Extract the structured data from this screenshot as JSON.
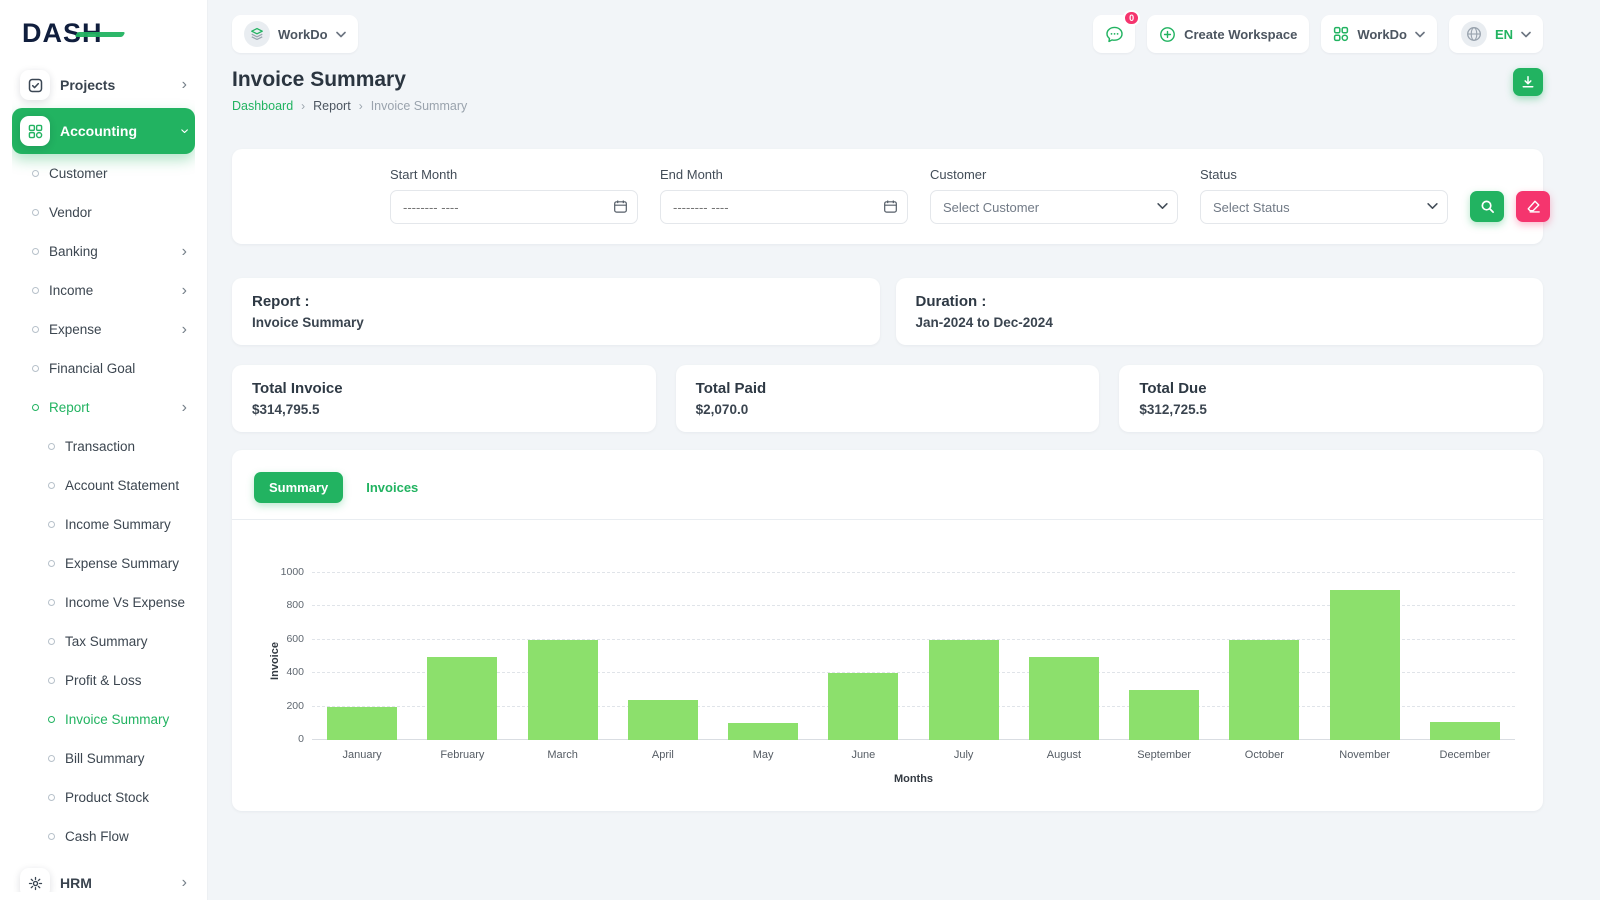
{
  "app": {
    "logo_text": "DASH"
  },
  "header": {
    "workspace_chip_label": "WorkDo",
    "messages_badge": "0",
    "create_workspace_label": "Create Workspace",
    "workspace_menu_label": "WorkDo",
    "language_label": "EN"
  },
  "sidebar": {
    "items": [
      {
        "label": "Projects",
        "level": 0,
        "icon": "projects-icon",
        "chevron": "right"
      },
      {
        "label": "Accounting",
        "level": 0,
        "icon": "accounting-icon",
        "chevron": "down",
        "active": true
      },
      {
        "label": "Customer",
        "level": 1
      },
      {
        "label": "Vendor",
        "level": 1
      },
      {
        "label": "Banking",
        "level": 1,
        "chevron": "right"
      },
      {
        "label": "Income",
        "level": 1,
        "chevron": "right"
      },
      {
        "label": "Expense",
        "level": 1,
        "chevron": "right"
      },
      {
        "label": "Financial Goal",
        "level": 1
      },
      {
        "label": "Report",
        "level": 1,
        "chevron": "right",
        "active": true
      },
      {
        "label": "Transaction",
        "level": 2
      },
      {
        "label": "Account Statement",
        "level": 2
      },
      {
        "label": "Income Summary",
        "level": 2
      },
      {
        "label": "Expense Summary",
        "level": 2
      },
      {
        "label": "Income Vs Expense",
        "level": 2
      },
      {
        "label": "Tax Summary",
        "level": 2
      },
      {
        "label": "Profit & Loss",
        "level": 2
      },
      {
        "label": "Invoice Summary",
        "level": 2,
        "active": true
      },
      {
        "label": "Bill Summary",
        "level": 2
      },
      {
        "label": "Product Stock",
        "level": 2
      },
      {
        "label": "Cash Flow",
        "level": 2
      },
      {
        "label": "HRM",
        "level": 0,
        "icon": "hrm-icon",
        "chevron": "right"
      }
    ]
  },
  "page": {
    "title": "Invoice Summary",
    "breadcrumb": [
      "Dashboard",
      "Report",
      "Invoice Summary"
    ]
  },
  "filters": {
    "start_month_label": "Start Month",
    "end_month_label": "End Month",
    "month_placeholder": "-------- ----",
    "customer_label": "Customer",
    "customer_selected": "Select Customer",
    "status_label": "Status",
    "status_selected": "Select Status"
  },
  "summary_cards": {
    "report_label": "Report :",
    "report_value": "Invoice Summary",
    "duration_label": "Duration :",
    "duration_value": "Jan-2024 to Dec-2024",
    "totals": [
      {
        "label": "Total Invoice",
        "value": "$314,795.5"
      },
      {
        "label": "Total Paid",
        "value": "$2,070.0"
      },
      {
        "label": "Total Due",
        "value": "$312,725.5"
      }
    ]
  },
  "tabs": {
    "summary_label": "Summary",
    "invoices_label": "Invoices"
  },
  "chart_data": {
    "type": "bar",
    "title": "",
    "categories": [
      "January",
      "February",
      "March",
      "April",
      "May",
      "June",
      "July",
      "August",
      "September",
      "October",
      "November",
      "December"
    ],
    "values": [
      200,
      500,
      600,
      240,
      100,
      400,
      600,
      500,
      300,
      600,
      900,
      110
    ],
    "xlabel": "Months",
    "ylabel": "Invoice",
    "ylim": [
      0,
      1000
    ],
    "yticks": [
      0,
      200,
      400,
      600,
      800,
      1000
    ],
    "grid": "dashed-horizontal",
    "legend": "none",
    "bar_color": "#8ce06c"
  },
  "colors": {
    "primary_green": "#22b361",
    "bar_green": "#8ce06c",
    "accent_pink": "#f5356e"
  },
  "icons": {
    "chevron-right-icon": "›",
    "chevron-down-icon": "v-chevron",
    "search-icon": "magnifier",
    "reset-icon": "eraser",
    "download-icon": "arrow-into-tray",
    "calendar-icon": "calendar",
    "chat-icon": "speech-bubble",
    "plus-circle-icon": "circle-plus",
    "grid-icon": "four-squares",
    "globe-icon": "globe",
    "projects-icon": "checked-box",
    "accounting-icon": "four-squares",
    "hrm-icon": "sun-gear",
    "bullet-icon": "small-circle"
  }
}
